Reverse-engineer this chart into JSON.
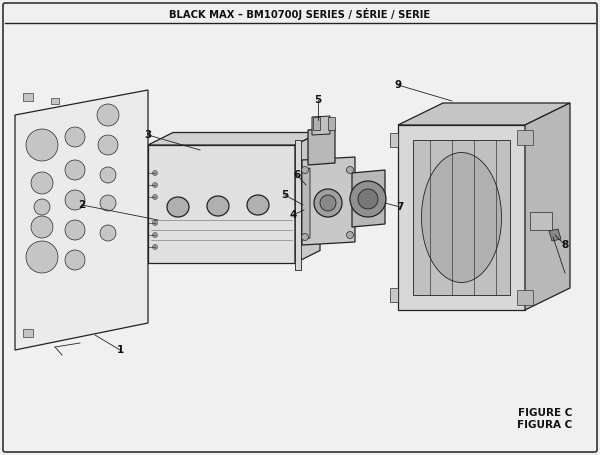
{
  "title": "BLACK MAX – BM10700J SERIES / SÉRIE / SERIE",
  "figure_label": "FIGURE C",
  "figura_label": "FIGURA C",
  "bg_color": "#f0f0f0",
  "line_color": "#222222",
  "face_light": "#e8e8e8",
  "face_mid": "#d0d0d0",
  "face_dark": "#b8b8b8",
  "face_darker": "#a0a0a0"
}
